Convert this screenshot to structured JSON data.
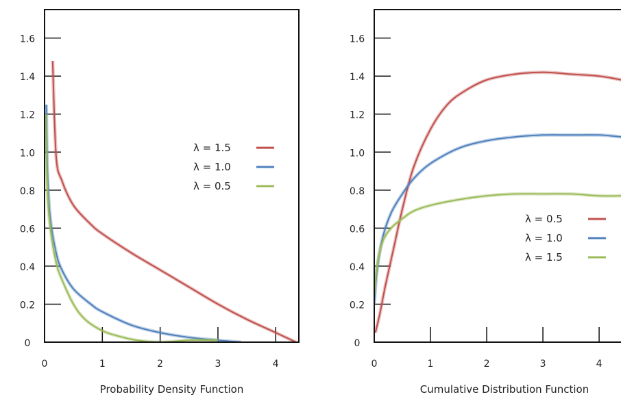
{
  "chart_data": [
    {
      "type": "line",
      "title": "",
      "xlabel": "Probability Density Function",
      "ylabel": "",
      "xlim": [
        0,
        4.4
      ],
      "ylim": [
        0,
        1.75
      ],
      "xticks": [
        0,
        1,
        2,
        3,
        4
      ],
      "xtick_labels": [
        "0",
        "1",
        "2",
        "3",
        "4"
      ],
      "yticks": [
        0,
        0.2,
        0.4,
        0.6,
        0.8,
        1.0,
        1.2,
        1.4,
        1.6
      ],
      "ytick_labels": [
        "0",
        "0.2",
        "0.4",
        "0.6",
        "0.8",
        "1.0",
        "1.2",
        "1.4",
        "1.6"
      ],
      "grid": false,
      "legend_position": "right",
      "series": [
        {
          "name": "λ = 1.5",
          "color": "#c0504d",
          "x": [
            0.14,
            0.2,
            0.3,
            0.5,
            0.8,
            1.0,
            1.5,
            2.0,
            2.5,
            3.0,
            3.5,
            4.0,
            4.35
          ],
          "y": [
            1.48,
            0.98,
            0.85,
            0.72,
            0.62,
            0.57,
            0.47,
            0.38,
            0.29,
            0.2,
            0.12,
            0.05,
            0.0
          ]
        },
        {
          "name": "λ = 1.0",
          "color": "#4f81bd",
          "x": [
            0.03,
            0.05,
            0.1,
            0.2,
            0.3,
            0.5,
            0.8,
            1.0,
            1.5,
            2.0,
            2.5,
            3.0,
            3.4
          ],
          "y": [
            1.25,
            0.9,
            0.65,
            0.47,
            0.38,
            0.28,
            0.2,
            0.16,
            0.09,
            0.05,
            0.025,
            0.01,
            0.0
          ]
        },
        {
          "name": "λ = 0.5",
          "color": "#9bbb59",
          "x": [
            0.02,
            0.05,
            0.1,
            0.2,
            0.3,
            0.5,
            0.7,
            1.0,
            1.3,
            1.6,
            2.0,
            2.5,
            3.0
          ],
          "y": [
            1.2,
            0.8,
            0.6,
            0.42,
            0.33,
            0.2,
            0.12,
            0.06,
            0.03,
            0.01,
            0.0,
            0.01,
            0.01
          ]
        }
      ]
    },
    {
      "type": "line",
      "title": "",
      "xlabel": "Cumulative Distribution  Function",
      "ylabel": "",
      "xlim": [
        0,
        4.45
      ],
      "ylim": [
        0,
        1.75
      ],
      "xticks": [
        0,
        1,
        2,
        3,
        4
      ],
      "xtick_labels": [
        "0",
        "1",
        "2",
        "3",
        "4"
      ],
      "yticks": [
        0,
        0.2,
        0.4,
        0.6,
        0.8,
        1.0,
        1.2,
        1.4,
        1.6
      ],
      "ytick_labels": [
        "0",
        "0.2",
        "0.4",
        "0.6",
        "0.8",
        "1.0",
        "1.2",
        "1.4",
        "1.6"
      ],
      "grid": false,
      "legend_position": "bottom-right",
      "series": [
        {
          "name": "λ = 0.5",
          "color": "#c0504d",
          "x": [
            0.02,
            0.1,
            0.2,
            0.35,
            0.5,
            0.7,
            1.0,
            1.3,
            1.6,
            2.0,
            2.5,
            3.0,
            3.5,
            4.0,
            4.4
          ],
          "y": [
            0.05,
            0.15,
            0.3,
            0.5,
            0.7,
            0.92,
            1.12,
            1.25,
            1.32,
            1.38,
            1.41,
            1.42,
            1.41,
            1.4,
            1.38
          ]
        },
        {
          "name": "λ = 1.0",
          "color": "#4f81bd",
          "x": [
            0.0,
            0.05,
            0.15,
            0.3,
            0.5,
            0.7,
            1.0,
            1.5,
            2.0,
            2.5,
            3.0,
            3.5,
            4.0,
            4.4
          ],
          "y": [
            0.2,
            0.38,
            0.55,
            0.68,
            0.78,
            0.86,
            0.94,
            1.02,
            1.06,
            1.08,
            1.09,
            1.09,
            1.09,
            1.08
          ]
        },
        {
          "name": "λ = 1.5",
          "color": "#9bbb59",
          "x": [
            0.0,
            0.05,
            0.15,
            0.3,
            0.5,
            0.7,
            1.0,
            1.5,
            2.0,
            2.5,
            3.0,
            3.5,
            4.0,
            4.4
          ],
          "y": [
            0.25,
            0.4,
            0.53,
            0.6,
            0.65,
            0.69,
            0.72,
            0.75,
            0.77,
            0.78,
            0.78,
            0.78,
            0.77,
            0.77
          ]
        }
      ]
    }
  ]
}
